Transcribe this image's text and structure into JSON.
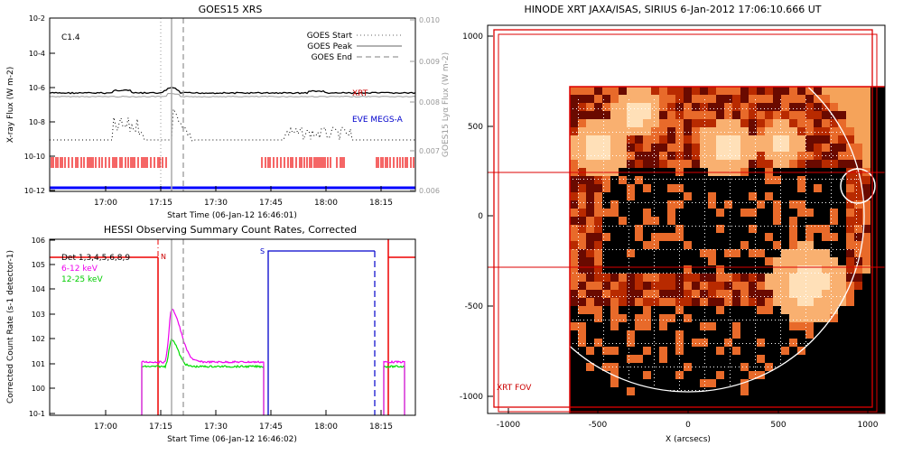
{
  "chart_data": [
    {
      "type": "line",
      "title": "GOES15 XRS",
      "xlabel": "Start Time (06-Jan-12 16:46:01)",
      "ylabel": "X-ray Flux (W m-2)",
      "ylabel_right": "GOES15 Lyα Flux (W m-2)",
      "flare_class": "C1.4",
      "x_ticks": [
        "17:00",
        "17:15",
        "17:30",
        "17:45",
        "18:00",
        "18:15"
      ],
      "y_ticks": [
        "10-12",
        "10-10",
        "10-8",
        "10-6",
        "10-4",
        "10-2"
      ],
      "y_ticks_right": [
        "0.006",
        "0.007",
        "0.008",
        "0.009",
        "0.010"
      ],
      "legend": [
        "GOES Start",
        "GOES Peak",
        "GOES End"
      ],
      "labels": {
        "xrt": "XRT",
        "eve": "EVE MEGS-A"
      }
    },
    {
      "type": "line",
      "title": "HESSI Observing Summary Count Rates, Corrected",
      "xlabel": "Start Time (06-Jan-12 16:46:02)",
      "ylabel": "Corrected Count Rate (s-1 detector-1)",
      "x_ticks": [
        "17:00",
        "17:15",
        "17:30",
        "17:45",
        "18:00",
        "18:15"
      ],
      "y_ticks": [
        "10-1",
        "100",
        "101",
        "102",
        "103",
        "104",
        "105",
        "106"
      ],
      "legend": {
        "det": "Det 1,3,4,5,6,8,9",
        "series": [
          "6-12 keV",
          "12-25 keV"
        ]
      },
      "markers": {
        "n": "N",
        "s": "S"
      }
    },
    {
      "type": "heatmap",
      "title": "HINODE XRT JAXA/ISAS, SIRIUS  6-Jan-2012 17:06:10.666 UT",
      "xlabel": "X (arcsecs)",
      "x_ticks": [
        "-1000",
        "-500",
        "0",
        "500",
        "1000"
      ],
      "y_ticks": [
        "-1000",
        "-500",
        "0",
        "500",
        "1000"
      ],
      "fov_label": "XRT FOV"
    }
  ]
}
